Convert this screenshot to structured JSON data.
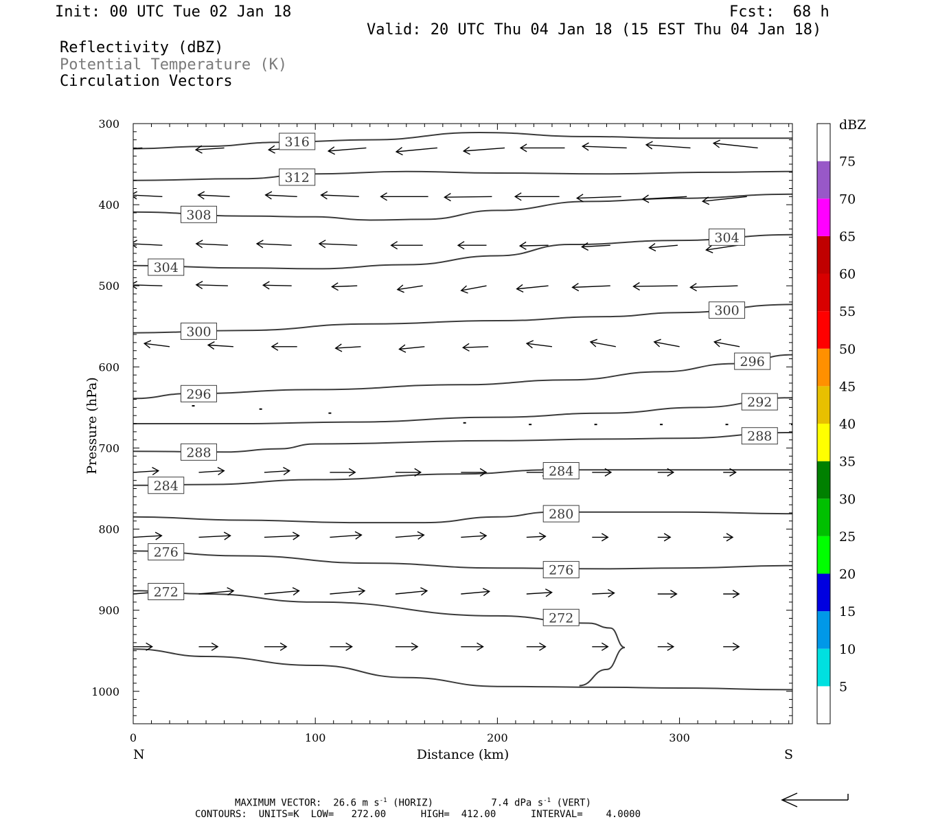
{
  "header": {
    "init": "Init: 00 UTC Tue 02 Jan 18",
    "fcst_label": "Fcst:",
    "fcst_value": "68 h",
    "valid": "Valid: 20 UTC Thu 04 Jan 18 (15 EST Thu 04 Jan 18)",
    "fields": [
      "Reflectivity (dBZ)",
      "Potential Temperature (K)",
      "Circulation Vectors"
    ]
  },
  "footer": {
    "max_vector_prefix": "MAXIMUM VECTOR:",
    "max_vector_horiz": "26.6 m s",
    "max_vector_horiz_unit": "(HORIZ)",
    "max_vector_vert": "7.4 dPa s",
    "max_vector_vert_unit": "(VERT)",
    "exponent": "-1",
    "contours": "CONTOURS:  UNITS=K  LOW=   272.00      HIGH=  412.00      INTERVAL=    4.0000"
  },
  "colorbar": {
    "title": "dBZ",
    "ticks": [
      "75",
      "70",
      "65",
      "60",
      "55",
      "50",
      "45",
      "40",
      "35",
      "30",
      "25",
      "20",
      "15",
      "10",
      "5"
    ],
    "colors": [
      "#ffffff",
      "#00e0e0",
      "#0098e8",
      "#0000e0",
      "#00ff00",
      "#00c000",
      "#008000",
      "#ffff00",
      "#e8c000",
      "#ff9000",
      "#ff0000",
      "#d80000",
      "#c00000",
      "#ff00ff",
      "#9858c8",
      "#ffffff"
    ]
  },
  "chart_data": {
    "type": "contour+vector cross-section",
    "xlabel": "Distance (km)",
    "ylabel": "Pressure (hPa)",
    "x_left_label": "N",
    "x_right_label": "S",
    "xlim": [
      0,
      362
    ],
    "ylim": [
      1040,
      300
    ],
    "xticks": [
      "0",
      "100",
      "200",
      "300"
    ],
    "xtick_values": [
      0,
      100,
      200,
      300
    ],
    "yticks": [
      "300",
      "400",
      "500",
      "600",
      "700",
      "800",
      "900",
      "1000"
    ],
    "ytick_values": [
      300,
      400,
      500,
      600,
      700,
      800,
      900,
      1000
    ],
    "contours": [
      {
        "level": "316",
        "points": [
          [
            0,
            331
          ],
          [
            40,
            328
          ],
          [
            80,
            323
          ],
          [
            130,
            320
          ],
          [
            190,
            311
          ],
          [
            250,
            316
          ],
          [
            300,
            318
          ],
          [
            362,
            318
          ]
        ]
      },
      {
        "level": "312",
        "points": [
          [
            0,
            370
          ],
          [
            60,
            368
          ],
          [
            100,
            362
          ],
          [
            150,
            359
          ],
          [
            200,
            361
          ],
          [
            260,
            362
          ],
          [
            320,
            360
          ],
          [
            362,
            359
          ]
        ]
      },
      {
        "level": "308",
        "points": [
          [
            0,
            409
          ],
          [
            60,
            414
          ],
          [
            100,
            415
          ],
          [
            130,
            419
          ],
          [
            160,
            418
          ],
          [
            200,
            407
          ],
          [
            250,
            396
          ],
          [
            300,
            392
          ],
          [
            362,
            387
          ]
        ]
      },
      {
        "level": "304",
        "points": [
          [
            0,
            475
          ],
          [
            60,
            478
          ],
          [
            100,
            479
          ],
          [
            150,
            474
          ],
          [
            200,
            463
          ],
          [
            240,
            449
          ],
          [
            300,
            444
          ],
          [
            362,
            437
          ]
        ]
      },
      {
        "level": "300",
        "points": [
          [
            0,
            558
          ],
          [
            60,
            555
          ],
          [
            130,
            547
          ],
          [
            200,
            543
          ],
          [
            260,
            538
          ],
          [
            300,
            533
          ],
          [
            362,
            523
          ]
        ]
      },
      {
        "level": "296",
        "points": [
          [
            0,
            639
          ],
          [
            30,
            633
          ],
          [
            100,
            628
          ],
          [
            180,
            622
          ],
          [
            240,
            616
          ],
          [
            290,
            606
          ],
          [
            330,
            596
          ],
          [
            362,
            585
          ]
        ]
      },
      {
        "level": "292",
        "points": [
          [
            0,
            670
          ],
          [
            60,
            670
          ],
          [
            120,
            668
          ],
          [
            200,
            662
          ],
          [
            260,
            657
          ],
          [
            310,
            650
          ],
          [
            362,
            638
          ]
        ]
      },
      {
        "level": "288",
        "points": [
          [
            0,
            704
          ],
          [
            50,
            705
          ],
          [
            80,
            701
          ],
          [
            100,
            695
          ],
          [
            200,
            691
          ],
          [
            260,
            689
          ],
          [
            300,
            688
          ],
          [
            362,
            681
          ]
        ]
      },
      {
        "level": "284",
        "points": [
          [
            0,
            746
          ],
          [
            40,
            745
          ],
          [
            100,
            739
          ],
          [
            180,
            732
          ],
          [
            230,
            727
          ],
          [
            300,
            727
          ],
          [
            362,
            727
          ]
        ]
      },
      {
        "level": "280",
        "points": [
          [
            0,
            785
          ],
          [
            60,
            789
          ],
          [
            120,
            792
          ],
          [
            160,
            792
          ],
          [
            200,
            785
          ],
          [
            230,
            779
          ],
          [
            300,
            779
          ],
          [
            362,
            781
          ]
        ]
      },
      {
        "level": "276",
        "points": [
          [
            0,
            827
          ],
          [
            60,
            833
          ],
          [
            130,
            842
          ],
          [
            200,
            848
          ],
          [
            260,
            849
          ],
          [
            300,
            848
          ],
          [
            362,
            845
          ]
        ]
      },
      {
        "level": "272",
        "points": [
          [
            0,
            876
          ],
          [
            40,
            880
          ],
          [
            100,
            890
          ],
          [
            200,
            907
          ],
          [
            250,
            916
          ],
          [
            262,
            922
          ],
          [
            270,
            946
          ],
          [
            260,
            973
          ],
          [
            245,
            993
          ]
        ]
      },
      {
        "level": "",
        "points": [
          [
            0,
            948
          ],
          [
            40,
            957
          ],
          [
            100,
            968
          ],
          [
            150,
            983
          ],
          [
            200,
            994
          ],
          [
            260,
            995
          ],
          [
            300,
            996
          ],
          [
            362,
            998
          ]
        ]
      }
    ],
    "contour_label_positions": [
      {
        "level": "316",
        "x": 90,
        "p": 322
      },
      {
        "level": "312",
        "x": 90,
        "p": 366
      },
      {
        "level": "308",
        "x": 36,
        "p": 412
      },
      {
        "level": "304",
        "x": 18,
        "p": 477
      },
      {
        "level": "304",
        "x": 326,
        "p": 440
      },
      {
        "level": "300",
        "x": 36,
        "p": 556
      },
      {
        "level": "300",
        "x": 326,
        "p": 530
      },
      {
        "level": "296",
        "x": 36,
        "p": 633
      },
      {
        "level": "296",
        "x": 340,
        "p": 593
      },
      {
        "level": "292",
        "x": 344,
        "p": 643
      },
      {
        "level": "288",
        "x": 36,
        "p": 705
      },
      {
        "level": "288",
        "x": 344,
        "p": 685
      },
      {
        "level": "284",
        "x": 18,
        "p": 746
      },
      {
        "level": "284",
        "x": 235,
        "p": 728
      },
      {
        "level": "280",
        "x": 235,
        "p": 781
      },
      {
        "level": "276",
        "x": 18,
        "p": 828
      },
      {
        "level": "276",
        "x": 235,
        "p": 850
      },
      {
        "level": "272",
        "x": 18,
        "p": 877
      },
      {
        "level": "272",
        "x": 235,
        "p": 909
      }
    ],
    "vectors": [
      {
        "p": 330,
        "x": [
          5,
          50,
          90,
          128,
          167,
          204,
          237,
          271,
          306,
          343
        ],
        "u": [
          -9,
          -9,
          -9,
          -12,
          -13,
          -13,
          -14,
          -14,
          -14,
          -14
        ],
        "w": [
          0.5,
          0.6,
          0.6,
          1,
          1.2,
          1,
          0,
          -0.5,
          -1,
          -1.5
        ]
      },
      {
        "p": 390,
        "x": [
          16,
          53,
          90,
          124,
          162,
          197,
          234,
          268,
          304,
          337
        ],
        "u": [
          -10,
          -10,
          -10,
          -12,
          -15,
          -15,
          -14,
          -14,
          -14,
          -14
        ],
        "w": [
          -0.5,
          -0.5,
          -0.5,
          -0.5,
          0,
          0.2,
          0,
          0.5,
          0.8,
          1.5
        ]
      },
      {
        "p": 450,
        "x": [
          16,
          52,
          87,
          123,
          159,
          194,
          228,
          262,
          299,
          332
        ],
        "u": [
          -10,
          -10,
          -11,
          -12,
          -10,
          -9,
          -9,
          -9,
          -9,
          -10
        ],
        "w": [
          -0.5,
          -0.5,
          -0.5,
          -0.5,
          0,
          0,
          0.2,
          0.5,
          0.8,
          1.5
        ]
      },
      {
        "p": 500,
        "x": [
          16,
          52,
          87,
          123,
          159,
          194,
          228,
          262,
          299,
          332
        ],
        "u": [
          -10,
          -10,
          -9,
          -8,
          -8,
          -8,
          -10,
          -12,
          -14,
          -15
        ],
        "w": [
          -0.3,
          -0.3,
          -0.2,
          0.3,
          1.2,
          1.5,
          1,
          0.5,
          0.2,
          0.5
        ]
      },
      {
        "p": 575,
        "x": [
          20,
          55,
          90,
          125,
          160,
          195,
          230,
          265,
          300,
          333
        ],
        "u": [
          -8,
          -8,
          -8,
          -8,
          -8,
          -8,
          -8,
          -8,
          -8,
          -8
        ],
        "w": [
          -1,
          -0.5,
          0,
          0.5,
          0.8,
          0.3,
          -1,
          -1.5,
          -1.5,
          -1.5
        ]
      },
      {
        "p": 730,
        "x": [
          0,
          36,
          72,
          108,
          144,
          180,
          216,
          252,
          288,
          324
        ],
        "u": [
          8,
          8,
          8,
          8,
          8,
          8,
          7,
          6,
          5,
          4
        ],
        "w": [
          -0.5,
          -0.5,
          -0.5,
          0,
          0,
          0,
          0,
          0,
          0,
          0
        ]
      },
      {
        "p": 810,
        "x": [
          0,
          36,
          72,
          108,
          144,
          180,
          216,
          252,
          288,
          324
        ],
        "u": [
          9,
          10,
          11,
          10,
          9,
          8,
          6,
          5,
          4,
          3
        ],
        "w": [
          -0.5,
          -0.5,
          -0.5,
          -0.7,
          -0.7,
          -0.5,
          -0.3,
          0,
          0,
          0
        ]
      },
      {
        "p": 880,
        "x": [
          0,
          36,
          72,
          108,
          144,
          180,
          216,
          252,
          288,
          324
        ],
        "u": [
          10,
          11,
          11,
          11,
          10,
          9,
          8,
          7,
          6,
          5
        ],
        "w": [
          -0.8,
          -1,
          -1,
          -1,
          -1,
          -0.8,
          -0.5,
          -0.3,
          0,
          0
        ]
      },
      {
        "p": 945,
        "x": [
          0,
          36,
          72,
          108,
          144,
          180,
          216,
          252,
          288,
          324
        ],
        "u": [
          6,
          6,
          7,
          7,
          7,
          7,
          6,
          5,
          5,
          5
        ],
        "w": [
          0,
          0,
          0,
          0,
          0,
          0,
          0,
          0,
          0,
          0
        ]
      }
    ],
    "small_dots": [
      [
        33,
        648
      ],
      [
        70,
        652
      ],
      [
        108,
        657
      ],
      [
        182,
        669
      ],
      [
        218,
        671
      ],
      [
        254,
        671
      ],
      [
        290,
        671
      ],
      [
        326,
        671
      ],
      [
        362,
        671
      ]
    ]
  }
}
